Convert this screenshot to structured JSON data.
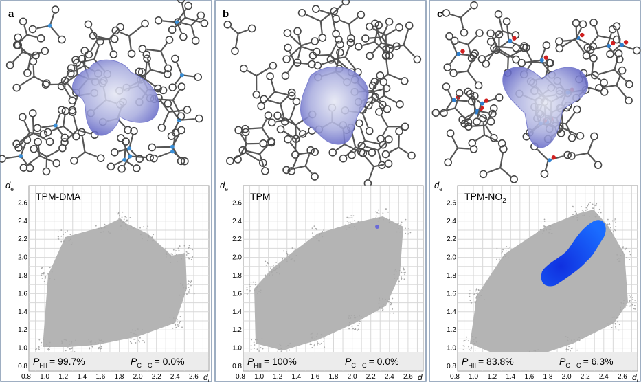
{
  "panels": [
    {
      "letter": "a",
      "compound": {
        "text": "TPM-DMA"
      },
      "p_hii": {
        "symbol": "P",
        "subscript": "HII",
        "value": "= 99.7%"
      },
      "p_cc": {
        "symbol": "P",
        "subscript": "C···C",
        "value": "= 0.0%"
      }
    },
    {
      "letter": "b",
      "compound": {
        "text": "TPM"
      },
      "p_hii": {
        "symbol": "P",
        "subscript": "HII",
        "value": "= 100%"
      },
      "p_cc": {
        "symbol": "P",
        "subscript": "C···C",
        "value": "= 0.0%"
      }
    },
    {
      "letter": "c",
      "compound": {
        "text": "TPM-NO",
        "subscript": "2"
      },
      "p_hii": {
        "symbol": "P",
        "subscript": "HII",
        "value": "= 83.8%"
      },
      "p_cc": {
        "symbol": "P",
        "subscript": "C···C",
        "value": "= 6.3%"
      }
    }
  ],
  "axes": {
    "y_label": {
      "symbol": "d",
      "subscript": "e"
    },
    "x_label": {
      "symbol": "d",
      "subscript": "i"
    },
    "ticks": [
      "0.8",
      "1.0",
      "1.2",
      "1.4",
      "1.6",
      "1.8",
      "2.0",
      "2.2",
      "2.4",
      "2.6"
    ]
  }
}
